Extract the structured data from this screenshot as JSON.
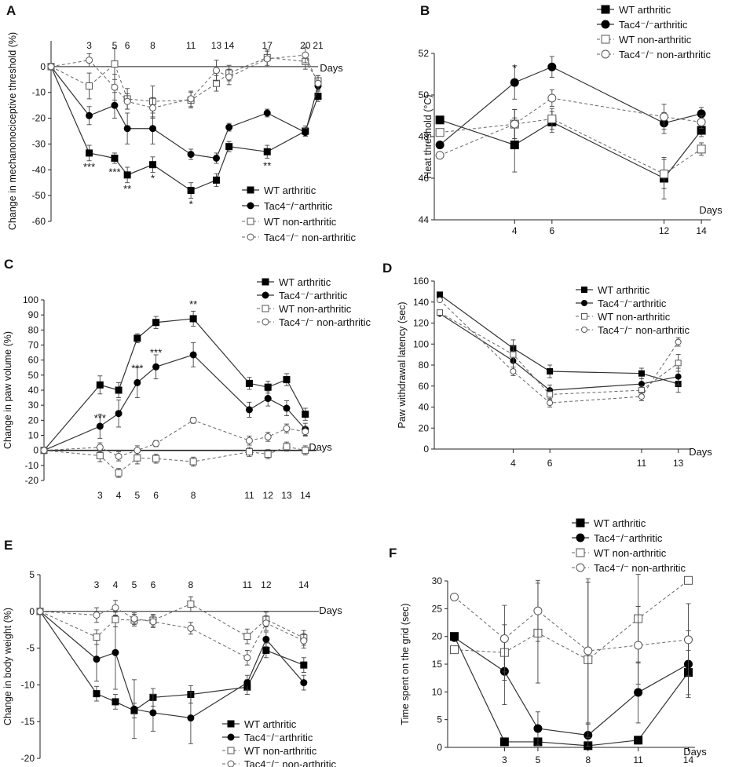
{
  "figure": {
    "panels": [
      "A",
      "B",
      "C",
      "D",
      "E",
      "F"
    ]
  },
  "chart_data": [
    {
      "panel": "A",
      "type": "line",
      "title": "",
      "xlabel": "Days",
      "ylabel": "Change in mechanonociceptive threshold (%)",
      "ylim": [
        -60,
        10
      ],
      "yticks": [
        0,
        -10,
        -20,
        -30,
        -40,
        -50,
        -60
      ],
      "xticks": [
        3,
        5,
        6,
        8,
        11,
        13,
        14,
        17,
        20,
        21
      ],
      "series": [
        {
          "name": "WT arthritic",
          "x": [
            0,
            3,
            5,
            6,
            8,
            11,
            13,
            14,
            17,
            20,
            21
          ],
          "values": [
            0,
            -33.5,
            -35.5,
            -42,
            -38,
            -48,
            -44,
            -31,
            -33,
            -25,
            -11.5
          ],
          "err": [
            0,
            3,
            2,
            3,
            3,
            3,
            2.5,
            2,
            2.5,
            2,
            2
          ]
        },
        {
          "name": "Tac4⁻/⁻arthritic",
          "x": [
            0,
            3,
            5,
            6,
            8,
            11,
            13,
            14,
            17,
            20,
            21
          ],
          "values": [
            0,
            -19,
            -15,
            -24,
            -24,
            -34,
            -35.5,
            -23.5,
            -18,
            -25.5,
            -7.5
          ],
          "err": [
            0,
            3.5,
            5,
            6,
            6,
            2,
            2,
            1.5,
            1.5,
            1.5,
            1.5
          ]
        },
        {
          "name": "WT non-arthritic",
          "x": [
            0,
            3,
            5,
            6,
            8,
            11,
            13,
            14,
            17,
            20,
            21
          ],
          "values": [
            0,
            -7.5,
            1,
            -12.5,
            -13.5,
            -13,
            -6.5,
            -2.5,
            3.5,
            2,
            -5.5
          ],
          "err": [
            0,
            5,
            6,
            4,
            6,
            3,
            3,
            3,
            3,
            3,
            2
          ]
        },
        {
          "name": "Tac4⁻/⁻ non-arthritic",
          "x": [
            0,
            3,
            5,
            6,
            8,
            11,
            13,
            14,
            17,
            20,
            21
          ],
          "values": [
            0,
            2.5,
            -8,
            -13.5,
            -16,
            -12.5,
            -1.5,
            -4,
            3,
            4.5,
            -6.5
          ],
          "err": [
            0,
            2.5,
            5,
            3,
            4,
            3,
            4,
            3,
            3,
            3,
            3
          ]
        }
      ],
      "annotations": [
        {
          "x": 3,
          "y": -33.5,
          "text": "***"
        },
        {
          "x": 5,
          "y": -35.5,
          "text": "***"
        },
        {
          "x": 6,
          "y": -42,
          "text": "**"
        },
        {
          "x": 8,
          "y": -38,
          "text": "*"
        },
        {
          "x": 11,
          "y": -48,
          "text": "*"
        },
        {
          "x": 17,
          "y": -33,
          "text": "**"
        }
      ]
    },
    {
      "panel": "B",
      "type": "line",
      "title": "",
      "xlabel": "Days",
      "ylabel": "Heat threshold (°C)",
      "ylim": [
        44,
        52
      ],
      "yticks": [
        44,
        46,
        48,
        50,
        52
      ],
      "xticks": [
        4,
        6,
        12,
        14
      ],
      "series": [
        {
          "name": "WT arthritic",
          "x": [
            0,
            4,
            6,
            12,
            14
          ],
          "values": [
            48.8,
            47.6,
            48.7,
            46,
            48.3
          ],
          "err": [
            0,
            1.3,
            0.5,
            1,
            0.3
          ]
        },
        {
          "name": "Tac4⁻/⁻arthritic",
          "x": [
            0,
            4,
            6,
            12,
            14
          ],
          "values": [
            47.6,
            50.6,
            51.35,
            48.65,
            49.1
          ],
          "err": [
            0,
            0.8,
            0.5,
            0.5,
            0.3
          ]
        },
        {
          "name": "WT non-arthritic",
          "x": [
            0,
            4,
            6,
            12,
            14
          ],
          "values": [
            48.2,
            48.6,
            48.85,
            46.2,
            47.4
          ],
          "err": [
            0,
            0.7,
            0.5,
            0.7,
            0.3
          ]
        },
        {
          "name": "Tac4⁻/⁻ non-arthritic",
          "x": [
            0,
            4,
            6,
            12,
            14
          ],
          "values": [
            47.1,
            48.6,
            49.85,
            48.95,
            48.7
          ],
          "err": [
            0,
            0.7,
            0.4,
            0.6,
            0.3
          ]
        }
      ],
      "annotations": [
        {
          "x": 4,
          "y": 50.6,
          "text": "*"
        }
      ]
    },
    {
      "panel": "C",
      "type": "line",
      "title": "",
      "xlabel": "Days",
      "ylabel": "Change in paw volume (%)",
      "ylim": [
        -20,
        100
      ],
      "yticks": [
        100,
        90,
        80,
        70,
        60,
        50,
        40,
        30,
        20,
        10,
        0,
        -10,
        -20
      ],
      "xticks": [
        3,
        4,
        5,
        6,
        8,
        11,
        12,
        13,
        14
      ],
      "series": [
        {
          "name": "WT arthritic",
          "x": [
            0,
            3,
            4,
            5,
            6,
            8,
            11,
            12,
            13,
            14
          ],
          "values": [
            0,
            43.5,
            40,
            74.5,
            85,
            87.5,
            44.5,
            42,
            47,
            24
          ],
          "err": [
            0,
            6,
            5,
            3,
            4,
            5,
            4,
            4,
            4,
            4
          ]
        },
        {
          "name": "Tac4⁻/⁻arthritic",
          "x": [
            0,
            3,
            4,
            5,
            6,
            8,
            11,
            12,
            13,
            14
          ],
          "values": [
            0,
            16,
            24.5,
            45,
            55.5,
            63.5,
            27,
            34.5,
            28,
            14
          ],
          "err": [
            0,
            8,
            9,
            10,
            8,
            8,
            5,
            5,
            5,
            4
          ]
        },
        {
          "name": "WT non-arthritic",
          "x": [
            0,
            3,
            4,
            5,
            6,
            8,
            11,
            12,
            13,
            14
          ],
          "values": [
            0,
            -3.5,
            -15,
            -5,
            -5.5,
            -7.5,
            -1,
            -2.5,
            2.5,
            0
          ],
          "err": [
            0,
            4,
            3,
            4,
            3,
            3,
            3,
            3,
            3,
            3
          ]
        },
        {
          "name": "Tac4⁻/⁻ non-arthritic",
          "x": [
            0,
            3,
            4,
            5,
            6,
            8,
            11,
            12,
            13,
            14
          ],
          "values": [
            0,
            2,
            -4,
            0,
            4.5,
            20,
            6.5,
            9,
            14.5,
            12.5
          ],
          "err": [
            0,
            3,
            3,
            3,
            2,
            2,
            3,
            3,
            3,
            3
          ]
        }
      ],
      "annotations": [
        {
          "x": 3,
          "y": 16,
          "text": "***"
        },
        {
          "x": 5,
          "y": 45,
          "text": "***"
        },
        {
          "x": 6,
          "y": 55.5,
          "text": "***"
        },
        {
          "x": 8,
          "y": 87.5,
          "text": "**"
        }
      ]
    },
    {
      "panel": "D",
      "type": "line",
      "title": "",
      "xlabel": "Days",
      "ylabel": "Paw withdrawal latency (sec)",
      "ylim": [
        0,
        160
      ],
      "yticks": [
        0,
        20,
        40,
        60,
        80,
        100,
        120,
        140,
        160
      ],
      "xticks": [
        4,
        6,
        11,
        13
      ],
      "series": [
        {
          "name": "WT arthritic",
          "x": [
            0,
            4,
            6,
            11,
            13
          ],
          "values": [
            147,
            96,
            74,
            72,
            62
          ],
          "err": [
            0,
            8,
            6,
            5,
            8
          ]
        },
        {
          "name": "Tac4⁻/⁻arthritic",
          "x": [
            0,
            4,
            6,
            11,
            13
          ],
          "values": [
            129,
            84,
            56,
            62,
            69
          ],
          "err": [
            0,
            8,
            5,
            5,
            8
          ]
        },
        {
          "name": "WT non-arthritic",
          "x": [
            0,
            4,
            6,
            11,
            13
          ],
          "values": [
            130,
            90,
            52,
            56,
            82
          ],
          "err": [
            0,
            8,
            5,
            4,
            8
          ]
        },
        {
          "name": "Tac4⁻/⁻ non-arthritic",
          "x": [
            0,
            4,
            6,
            11,
            13
          ],
          "values": [
            142,
            74,
            44,
            50,
            102
          ],
          "err": [
            0,
            4,
            4,
            4,
            4
          ]
        }
      ]
    },
    {
      "panel": "E",
      "type": "line",
      "title": "",
      "xlabel": "Days",
      "ylabel": "Change in body weight (%)",
      "ylim": [
        -20,
        5
      ],
      "yticks": [
        5,
        0,
        -5,
        -10,
        -15,
        -20
      ],
      "xticks": [
        3,
        4,
        5,
        6,
        8,
        11,
        12,
        14
      ],
      "series": [
        {
          "name": "WT arthritic",
          "x": [
            0,
            3,
            4,
            5,
            6,
            8,
            11,
            12,
            14
          ],
          "values": [
            0,
            -11.2,
            -12.3,
            -13.5,
            -11.7,
            -11.3,
            -10.3,
            -5.3,
            -7.3
          ],
          "err": [
            0,
            1,
            1,
            1,
            1.2,
            1.2,
            1,
            1,
            1
          ]
        },
        {
          "name": "Tac4⁻/⁻arthritic",
          "x": [
            0,
            3,
            4,
            5,
            6,
            8,
            11,
            12,
            14
          ],
          "values": [
            0,
            -6.5,
            -5.6,
            -13.3,
            -13.8,
            -14.5,
            -9.7,
            -3.8,
            -9.7
          ],
          "err": [
            0,
            3,
            5,
            4,
            2.5,
            3.5,
            1,
            1,
            1
          ]
        },
        {
          "name": "WT non-arthritic",
          "x": [
            0,
            3,
            4,
            5,
            6,
            8,
            11,
            12,
            14
          ],
          "values": [
            0,
            -3.5,
            -1.1,
            -1.2,
            -1.2,
            1,
            -3.4,
            -1.1,
            -3.6
          ],
          "err": [
            0,
            1,
            1,
            0.8,
            0.8,
            1,
            1,
            1,
            1
          ]
        },
        {
          "name": "Tac4⁻/⁻ non-arthritic",
          "x": [
            0,
            3,
            4,
            5,
            6,
            8,
            11,
            12,
            14
          ],
          "values": [
            0,
            -0.5,
            0.5,
            -1,
            -1.4,
            -2.3,
            -6.3,
            -1.6,
            -4
          ],
          "err": [
            0,
            1,
            1,
            0.8,
            0.8,
            0.8,
            1,
            1,
            1
          ]
        }
      ]
    },
    {
      "panel": "F",
      "type": "line",
      "title": "",
      "xlabel": "Days",
      "ylabel": "Time spent on the grid (sec)",
      "ylim": [
        0,
        30
      ],
      "yticks": [
        0,
        5,
        10,
        15,
        20,
        25,
        30
      ],
      "xticks": [
        3,
        5,
        8,
        11,
        14
      ],
      "series": [
        {
          "name": "WT arthritic",
          "x": [
            0,
            3,
            5,
            8,
            11,
            14
          ],
          "values": [
            20,
            1,
            1,
            0.3,
            1.3,
            13.5
          ],
          "err": [
            0,
            0.3,
            0.3,
            0.3,
            0.7,
            4
          ]
        },
        {
          "name": "Tac4⁻/⁻arthritic",
          "x": [
            0,
            3,
            5,
            8,
            11,
            14
          ],
          "values": [
            19.8,
            13.7,
            3.4,
            2.2,
            9.9,
            15
          ],
          "err": [
            0,
            6,
            3,
            2,
            5.5,
            6
          ]
        },
        {
          "name": "WT non-arthritic",
          "x": [
            0,
            3,
            5,
            8,
            11,
            14
          ],
          "values": [
            17.6,
            17.1,
            20.6,
            15.8,
            23.2,
            30.1
          ],
          "err": [
            0,
            5,
            9,
            14,
            8,
            0
          ]
        },
        {
          "name": "Tac4⁻/⁻ non-arthritic",
          "x": [
            0,
            3,
            5,
            8,
            11,
            14
          ],
          "values": [
            27.1,
            19.6,
            24.6,
            17.4,
            18.4,
            19.4
          ],
          "err": [
            0,
            6,
            5.5,
            13,
            7,
            6.5
          ]
        }
      ]
    }
  ]
}
